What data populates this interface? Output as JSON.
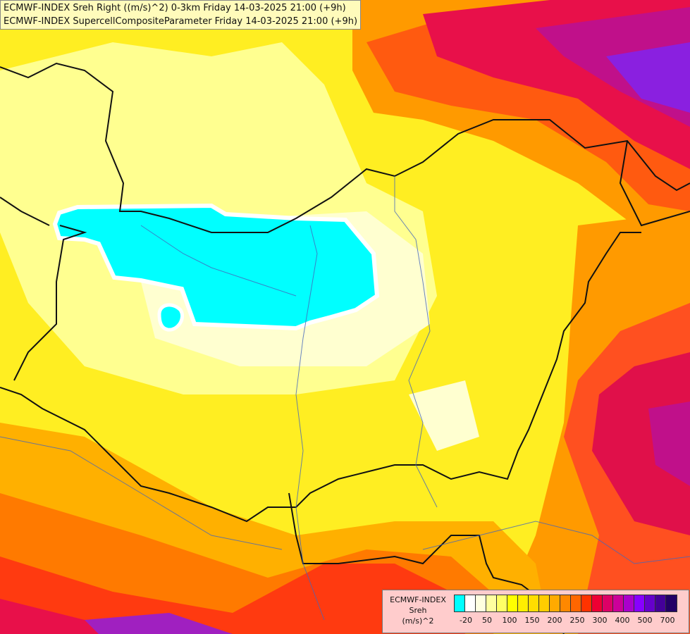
{
  "title_lines": [
    "ECMWF-INDEX Sreh Right ((m/s)^2) 0-3km Friday 14-03-2025 21:00 (+9h)",
    "ECMWF-INDEX SupercellCompositeParameter Friday 14-03-2025 21:00 (+9h)"
  ],
  "legend": {
    "model": "ECMWF-INDEX",
    "variable": "Sreh",
    "unit": "(m/s)^2",
    "colors": [
      "#00ffff",
      "#ffffff",
      "#ffffe0",
      "#ffffa0",
      "#ffff66",
      "#ffff00",
      "#ffee00",
      "#ffdd00",
      "#ffcc00",
      "#ffaa00",
      "#ff8800",
      "#ff6600",
      "#ff3300",
      "#ee0033",
      "#dd0066",
      "#cc0099",
      "#aa00cc",
      "#8800ff",
      "#6600cc",
      "#440099",
      "#220066"
    ],
    "tick_labels": [
      "-20",
      "50",
      "100",
      "150",
      "200",
      "250",
      "300",
      "400",
      "500",
      "700"
    ]
  }
}
